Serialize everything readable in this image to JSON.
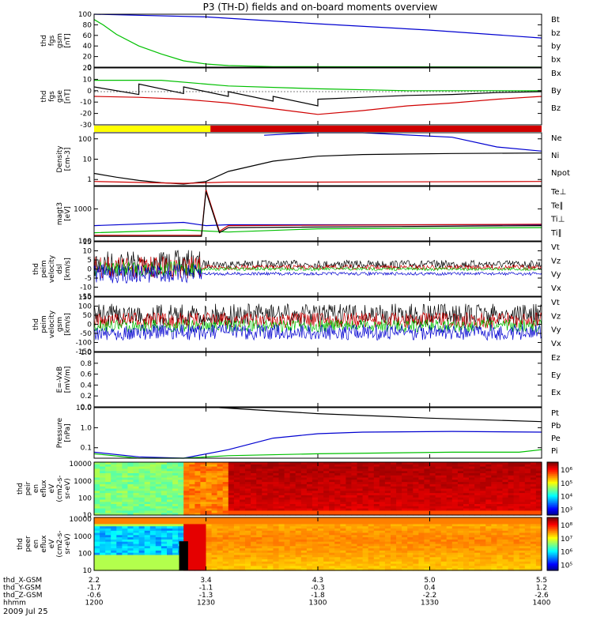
{
  "title": "P3 (TH-D) fields and on-board moments overview",
  "date": "2009 Jul 25",
  "colors": {
    "black": "#000000",
    "red": "#d00000",
    "green": "#00c000",
    "blue": "#0000d0",
    "yellow": "#ffff00"
  },
  "chart_data": {
    "type": "line",
    "x_ticks": [
      "1200",
      "1230",
      "1300",
      "1330",
      "1400"
    ],
    "x_time_range": [
      "12:00",
      "14:00"
    ],
    "panels": [
      {
        "id": "fgs-gsm",
        "ylabel": [
          "thd",
          "fgs",
          "gsm",
          "[nT]"
        ],
        "ylim": [
          0,
          100
        ],
        "yticks": [
          "100",
          "80",
          "60",
          "40",
          "20",
          "0"
        ],
        "legend": [
          {
            "name": "Bt",
            "color": "black"
          },
          {
            "name": "bz",
            "color": "red"
          },
          {
            "name": "by",
            "color": "green"
          },
          {
            "name": "bx",
            "color": "blue"
          }
        ],
        "series": [
          {
            "name": "bx",
            "color": "blue",
            "x": [
              0,
              0.25,
              0.5,
              0.75,
              1.0
            ],
            "y": [
              125,
              95,
              82,
              70,
              55
            ]
          },
          {
            "name": "by",
            "color": "green",
            "x": [
              0,
              0.02,
              0.05,
              0.1,
              0.15,
              0.2,
              0.25,
              0.3,
              0.4,
              1.0
            ],
            "y": [
              90,
              80,
              62,
              40,
              25,
              12,
              6,
              3,
              1,
              0
            ]
          }
        ]
      },
      {
        "id": "fgs-gse",
        "ylabel": [
          "thd",
          "fgs",
          "gse",
          "[nT]"
        ],
        "ylim": [
          -35,
          25
        ],
        "yticks": [
          "20",
          "10",
          "0",
          "-10",
          "-20",
          "-30"
        ],
        "legend": [
          {
            "name": "Bx",
            "color": "blue"
          },
          {
            "name": "By",
            "color": "green"
          },
          {
            "name": "Bz",
            "color": "red"
          }
        ],
        "series": [
          {
            "name": "By",
            "color": "green",
            "x": [
              0,
              0.15,
              0.3,
              0.5,
              0.7,
              1.0
            ],
            "y": [
              12,
              12,
              6,
              3,
              1,
              1
            ]
          },
          {
            "name": "Bz",
            "color": "red",
            "x": [
              0,
              0.1,
              0.2,
              0.3,
              0.4,
              0.5,
              0.6,
              0.7,
              0.8,
              0.9,
              1.0
            ],
            "y": [
              -5,
              -6,
              -8,
              -12,
              -18,
              -24,
              -20,
              -15,
              -12,
              -8,
              -5
            ]
          },
          {
            "name": "Bt-sawtooth",
            "color": "black",
            "x": [
              0,
              0.1,
              0.1,
              0.2,
              0.2,
              0.3,
              0.3,
              0.4,
              0.4,
              0.5,
              0.5,
              0.6,
              0.7,
              0.8,
              0.9,
              1.0
            ],
            "y": [
              5,
              -3,
              8,
              -2,
              5,
              -5,
              0,
              -10,
              -5,
              -15,
              -8,
              -6,
              -4,
              -3,
              -1,
              0
            ]
          }
        ]
      },
      {
        "id": "mode-bar",
        "segments": [
          {
            "color": "yellow",
            "from": 0,
            "to": 0.26
          },
          {
            "color": "red",
            "from": 0.26,
            "to": 1.0
          }
        ]
      },
      {
        "id": "density",
        "ylabel": [
          "Density",
          "[cm-3]"
        ],
        "yscale": "log",
        "ylim": [
          0.5,
          200
        ],
        "yticks": [
          "100",
          "10",
          "1"
        ],
        "legend": [
          {
            "name": "Ne",
            "color": "red"
          },
          {
            "name": "Ni",
            "color": "black"
          },
          {
            "name": "Npot",
            "color": "blue"
          }
        ],
        "series": [
          {
            "name": "Ni",
            "color": "black",
            "x": [
              0,
              0.05,
              0.1,
              0.15,
              0.2,
              0.25,
              0.3,
              0.4,
              0.5,
              0.6,
              0.8,
              1.0
            ],
            "y": [
              2,
              1.3,
              0.9,
              0.7,
              0.6,
              0.8,
              2.5,
              8,
              14,
              17,
              19,
              20
            ]
          },
          {
            "name": "Ne",
            "color": "red",
            "x": [
              0,
              0.2,
              0.3,
              0.5,
              1.0
            ],
            "y": [
              0.8,
              0.65,
              0.75,
              0.75,
              0.8
            ]
          },
          {
            "name": "Npot",
            "color": "blue",
            "x": [
              0.38,
              0.45,
              0.5,
              0.6,
              0.8,
              0.9,
              1.0
            ],
            "y": [
              150,
              180,
              200,
              200,
              120,
              40,
              25
            ]
          }
        ]
      },
      {
        "id": "temperature",
        "ylabel": [
          "magt3",
          "[eV]"
        ],
        "yscale": "log",
        "ylim": [
          100,
          5000
        ],
        "yticks": [
          "1000",
          "100"
        ],
        "legend": [
          {
            "name": "Te⊥",
            "color": "red"
          },
          {
            "name": "Te∥",
            "color": "black"
          },
          {
            "name": "Ti⊥",
            "color": "blue"
          },
          {
            "name": "Ti∥",
            "color": "green"
          }
        ],
        "series": [
          {
            "name": "Ti⊥",
            "color": "blue",
            "x": [
              0,
              0.2,
              0.25,
              0.3,
              0.5,
              1.0
            ],
            "y": [
              300,
              380,
              300,
              320,
              320,
              320
            ]
          },
          {
            "name": "Ti∥",
            "color": "green",
            "x": [
              0,
              0.2,
              0.3,
              0.5,
              1.0
            ],
            "y": [
              180,
              220,
              190,
              240,
              260
            ]
          },
          {
            "name": "Te⊥",
            "color": "red",
            "x": [
              0,
              0.2,
              0.24,
              0.25,
              0.28,
              0.3,
              1.0
            ],
            "y": [
              150,
              150,
              150,
              4000,
              200,
              300,
              330
            ]
          },
          {
            "name": "Te∥",
            "color": "black",
            "x": [
              0,
              0.2,
              0.24,
              0.25,
              0.28,
              0.3,
              1.0
            ],
            "y": [
              140,
              140,
              140,
              3500,
              180,
              260,
              300
            ]
          }
        ]
      },
      {
        "id": "peim-dsl",
        "ylabel": [
          "thd",
          "peim",
          "velocity",
          "dsl",
          "[km/s]"
        ],
        "ylim": [
          -15,
          15
        ],
        "yticks": [
          "15",
          "10",
          "5",
          "0",
          "-5",
          "-10",
          "-15"
        ],
        "legend": [
          {
            "name": "Vt",
            "color": "black"
          },
          {
            "name": "Vz",
            "color": "red"
          },
          {
            "name": "Vy",
            "color": "green"
          },
          {
            "name": "Vx",
            "color": "blue"
          }
        ]
      },
      {
        "id": "peim-gsm",
        "ylabel": [
          "thd",
          "peim",
          "velocity",
          "gsm",
          "[km/s]"
        ],
        "ylim": [
          -150,
          150
        ],
        "yticks": [
          "150",
          "100",
          "50",
          "0",
          "-50",
          "-100",
          "-150"
        ],
        "legend": [
          {
            "name": "Vt",
            "color": "black"
          },
          {
            "name": "Vz",
            "color": "red"
          },
          {
            "name": "Vy",
            "color": "green"
          },
          {
            "name": "Vx",
            "color": "blue"
          }
        ]
      },
      {
        "id": "efield",
        "ylabel": [
          "E=-VxB",
          "[mV/m]"
        ],
        "ylim": [
          0,
          1
        ],
        "yticks": [
          "1.0",
          "0.8",
          "0.6",
          "0.4",
          "0.2",
          "0.0"
        ],
        "legend": [
          {
            "name": "Ez",
            "color": "red"
          },
          {
            "name": "Ey",
            "color": "green"
          },
          {
            "name": "Ex",
            "color": "blue"
          }
        ]
      },
      {
        "id": "pressure",
        "ylabel": [
          "Pressure",
          "[nPa]"
        ],
        "yscale": "log",
        "ylim": [
          0.03,
          10
        ],
        "yticks": [
          "10.0",
          "1.0",
          "0.1"
        ],
        "legend": [
          {
            "name": "Pt",
            "color": "black"
          },
          {
            "name": "Pb",
            "color": "red"
          },
          {
            "name": "Pe",
            "color": "green"
          },
          {
            "name": "Pi",
            "color": "blue"
          }
        ],
        "series": [
          {
            "name": "Pt",
            "color": "black",
            "x": [
              0.28,
              0.5,
              0.75,
              1.0
            ],
            "y": [
              12,
              5,
              3,
              2
            ]
          },
          {
            "name": "Pi",
            "color": "blue",
            "x": [
              0,
              0.1,
              0.2,
              0.3,
              0.4,
              0.5,
              0.6,
              0.8,
              1.0
            ],
            "y": [
              0.06,
              0.035,
              0.03,
              0.08,
              0.3,
              0.5,
              0.6,
              0.65,
              0.6
            ]
          },
          {
            "name": "Pe",
            "color": "green",
            "x": [
              0,
              0.1,
              0.2,
              0.3,
              0.5,
              0.8,
              0.95,
              1.0
            ],
            "y": [
              0.05,
              0.03,
              0.03,
              0.04,
              0.05,
              0.06,
              0.06,
              0.08
            ]
          }
        ]
      },
      {
        "id": "peir-spectrogram",
        "type": "heatmap",
        "ylabel": [
          "thd",
          "peir",
          "en",
          "eflux",
          "eV",
          "(cm2-s-",
          "sr-eV)"
        ],
        "yscale": "log",
        "yticks": [
          "10000",
          "1000",
          "100",
          "10"
        ],
        "colorbar_ticks": [
          "10⁶",
          "10⁵",
          "10⁴",
          "10³"
        ]
      },
      {
        "id": "peer-spectrogram",
        "type": "heatmap",
        "ylabel": [
          "thd",
          "peer",
          "en",
          "eflux",
          "eV",
          "(cm2-s-",
          "sr-eV)"
        ],
        "yscale": "log",
        "yticks": [
          "10000",
          "1000",
          "100",
          "10"
        ],
        "colorbar_ticks": [
          "10⁸",
          "10⁷",
          "10⁶",
          "10⁵"
        ]
      }
    ],
    "x_axis_table": [
      {
        "label": "thd_X-GSM",
        "values": [
          "2.2",
          "3.4",
          "4.3",
          "5.0",
          "5.5"
        ]
      },
      {
        "label": "thd_Y-GSM",
        "values": [
          "-1.7",
          "-1.1",
          "-0.3",
          "0.4",
          "1.2"
        ]
      },
      {
        "label": "thd_Z-GSM",
        "values": [
          "-0.6",
          "-1.3",
          "-1.8",
          "-2.2",
          "-2.6"
        ]
      },
      {
        "label": "hhmm",
        "values": [
          "1200",
          "1230",
          "1300",
          "1330",
          "1400"
        ]
      }
    ]
  }
}
